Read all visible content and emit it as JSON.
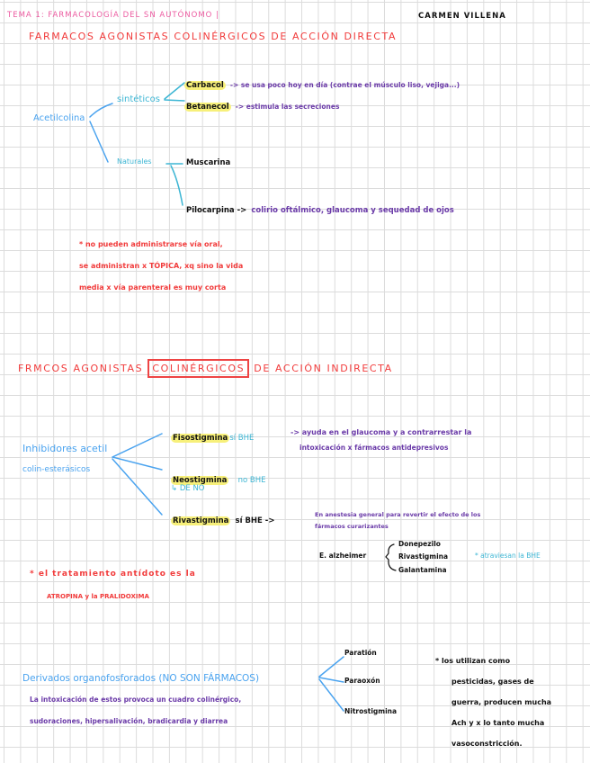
{
  "header": {
    "topic": "TEMA 1: FARMACOLOGÍA DEL SN AUTÓNOMO |",
    "author": "CARMEN VILLENA"
  },
  "section1": {
    "title": "FARMACOS AGONISTAS COLINÉRGICOS DE ACCIÓN DIRECTA",
    "root": "Acetilcolina",
    "synthetic": "sintéticos",
    "natural": "Naturales",
    "carbacol": {
      "name": "Carbacol",
      "note": "-> se usa poco hoy en día (contrae el músculo liso, vejiga...)"
    },
    "betanecol": {
      "name": "Betanecol",
      "note": "-> estimula las secreciones"
    },
    "muscarina": "Muscarina",
    "pilocarpina": {
      "name": "Pilocarpina ->",
      "note": "colirio oftálmico, glaucoma y sequedad de ojos"
    },
    "notes": [
      "* no pueden administrarse vía oral,",
      "se administran x TÓPICA, xq sino la vida",
      "media x vía parenteral es muy corta"
    ]
  },
  "section2": {
    "title_pre": "FRMCOS AGONISTAS",
    "title_boxed": "COLINÉRGICOS",
    "title_post": "DE ACCIÓN INDIRECTA",
    "root": [
      "Inhibidores acetil",
      "colin-esterásicos"
    ],
    "fisostigmina": {
      "name": "Fisostigmina",
      "bhe": "sí BHE",
      "note": [
        "-> ayuda en el glaucoma y a contrarrestar la",
        "intoxicación x fármacos antidepresivos"
      ]
    },
    "neostigmina": {
      "name": "Neostigmina",
      "bhe": "no BHE",
      "sub": "↳ DE NO"
    },
    "rivastigmina": {
      "name": "Rivastigmina",
      "bhe": "sí BHE ->",
      "note": [
        "En anestesia general para revertir el efecto de los",
        "fármacos curarizantes"
      ]
    },
    "alzheimer": {
      "label": "E. alzheimer",
      "drugs": [
        "Donepezilo",
        "Rivastigmina",
        "Galantamina"
      ],
      "note": "* atraviesan la BHE"
    },
    "antidote": [
      "* el tratamiento antídoto es la",
      "ATROPINA y la PRALIDOXIMA"
    ]
  },
  "section3": {
    "title": "Derivados organofosforados (NO SON FÁRMACOS)",
    "desc": [
      "La intoxicación de estos provoca un cuadro colinérgico,",
      "sudoraciones, hipersalivación, bradicardia y diarrea"
    ],
    "items": [
      "Paratión",
      "Paraoxón",
      "Nitrostigmina"
    ],
    "notes": [
      "* los utilizan como",
      "pesticidas, gases de",
      "guerra, producen mucha",
      "Ach y x lo tanto mucha",
      "vasoconstricción."
    ]
  }
}
